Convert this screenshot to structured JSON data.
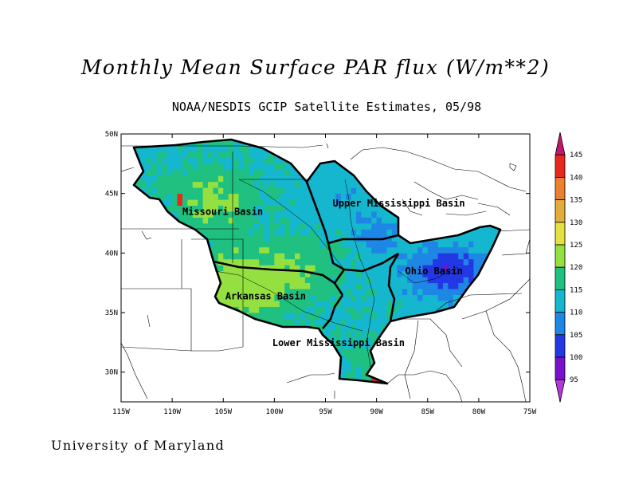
{
  "title": "Monthly Mean Surface PAR flux (W/m**2)",
  "subtitle": "NOAA/NESDIS GCIP Satellite Estimates, 05/98",
  "footer": "University of Maryland",
  "map": {
    "lon_range": [
      -115,
      -75
    ],
    "lat_range": [
      27.5,
      50
    ],
    "x_ticks": [
      "115W",
      "110W",
      "105W",
      "100W",
      "95W",
      "90W",
      "85W",
      "80W",
      "75W"
    ],
    "y_ticks": [
      "30N",
      "35N",
      "40N",
      "45N",
      "50N"
    ],
    "basins": [
      {
        "name": "Missouri Basin",
        "lon": -109.0,
        "lat": 43.2
      },
      {
        "name": "Upper Mississippi Basin",
        "lon": -94.3,
        "lat": 43.9
      },
      {
        "name": "Ohio Basin",
        "lon": -87.2,
        "lat": 38.2
      },
      {
        "name": "Arkansas Basin",
        "lon": -104.8,
        "lat": 36.1
      },
      {
        "name": "Lower Mississippi Basin",
        "lon": -100.2,
        "lat": 32.2
      }
    ],
    "field_range": [
      95,
      145
    ]
  },
  "colorbar": {
    "labels": [
      "145",
      "140",
      "135",
      "130",
      "125",
      "120",
      "115",
      "110",
      "105",
      "100",
      "95"
    ],
    "colors": [
      "#c2186b",
      "#e8281c",
      "#ea8030",
      "#e3ac3c",
      "#e4e140",
      "#94e040",
      "#1fc080",
      "#15b7cf",
      "#1e86e4",
      "#2337e4",
      "#7b10cc",
      "#b438d8"
    ]
  }
}
